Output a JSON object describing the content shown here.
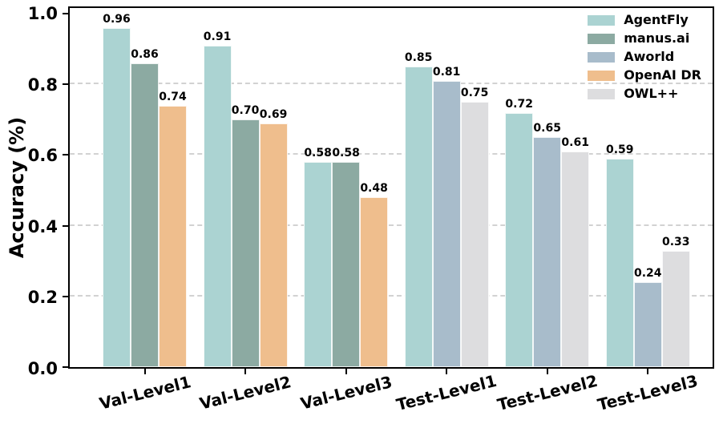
{
  "figure": {
    "background": "#ffffff",
    "axis_color": "#000000",
    "grid_color": "#d2d2d2"
  },
  "chart_data": {
    "type": "bar",
    "title": "",
    "xlabel": "",
    "ylabel": "Accuracy (%)",
    "ylim": [
      0.0,
      1.016
    ],
    "grid": "horizontal-dashed",
    "legend_position": "upper-right",
    "value_labels": "2 decimal places above each bar",
    "categories": [
      "Val-Level1",
      "Val-Level2",
      "Val-Level3",
      "Test-Level1",
      "Test-Level2",
      "Test-Level3"
    ],
    "yticks": [
      {
        "label": "0.0",
        "value": 0.0
      },
      {
        "label": "0.2",
        "value": 0.2
      },
      {
        "label": "0.4",
        "value": 0.4
      },
      {
        "label": "0.6",
        "value": 0.6
      },
      {
        "label": "0.8",
        "value": 0.8
      },
      {
        "label": "1.0",
        "value": 1.0
      }
    ],
    "gridline_values": [
      0.2,
      0.4,
      0.6,
      0.8
    ],
    "series": [
      {
        "name": "AgentFly",
        "color": "#abd3d2",
        "values": [
          0.96,
          0.91,
          0.58,
          0.85,
          0.72,
          0.59
        ]
      },
      {
        "name": "manus.ai",
        "color": "#8caaa2",
        "values": [
          0.86,
          0.7,
          0.58,
          null,
          null,
          null
        ]
      },
      {
        "name": "Aworld",
        "color": "#a8bccb",
        "values": [
          null,
          null,
          null,
          0.81,
          0.65,
          0.24
        ]
      },
      {
        "name": "OpenAI DR",
        "color": "#efbe8d",
        "values": [
          0.74,
          0.69,
          0.48,
          null,
          null,
          null
        ]
      },
      {
        "name": "OWL++",
        "color": "#dddddf",
        "values": [
          null,
          null,
          null,
          0.75,
          0.61,
          0.33
        ]
      }
    ]
  }
}
